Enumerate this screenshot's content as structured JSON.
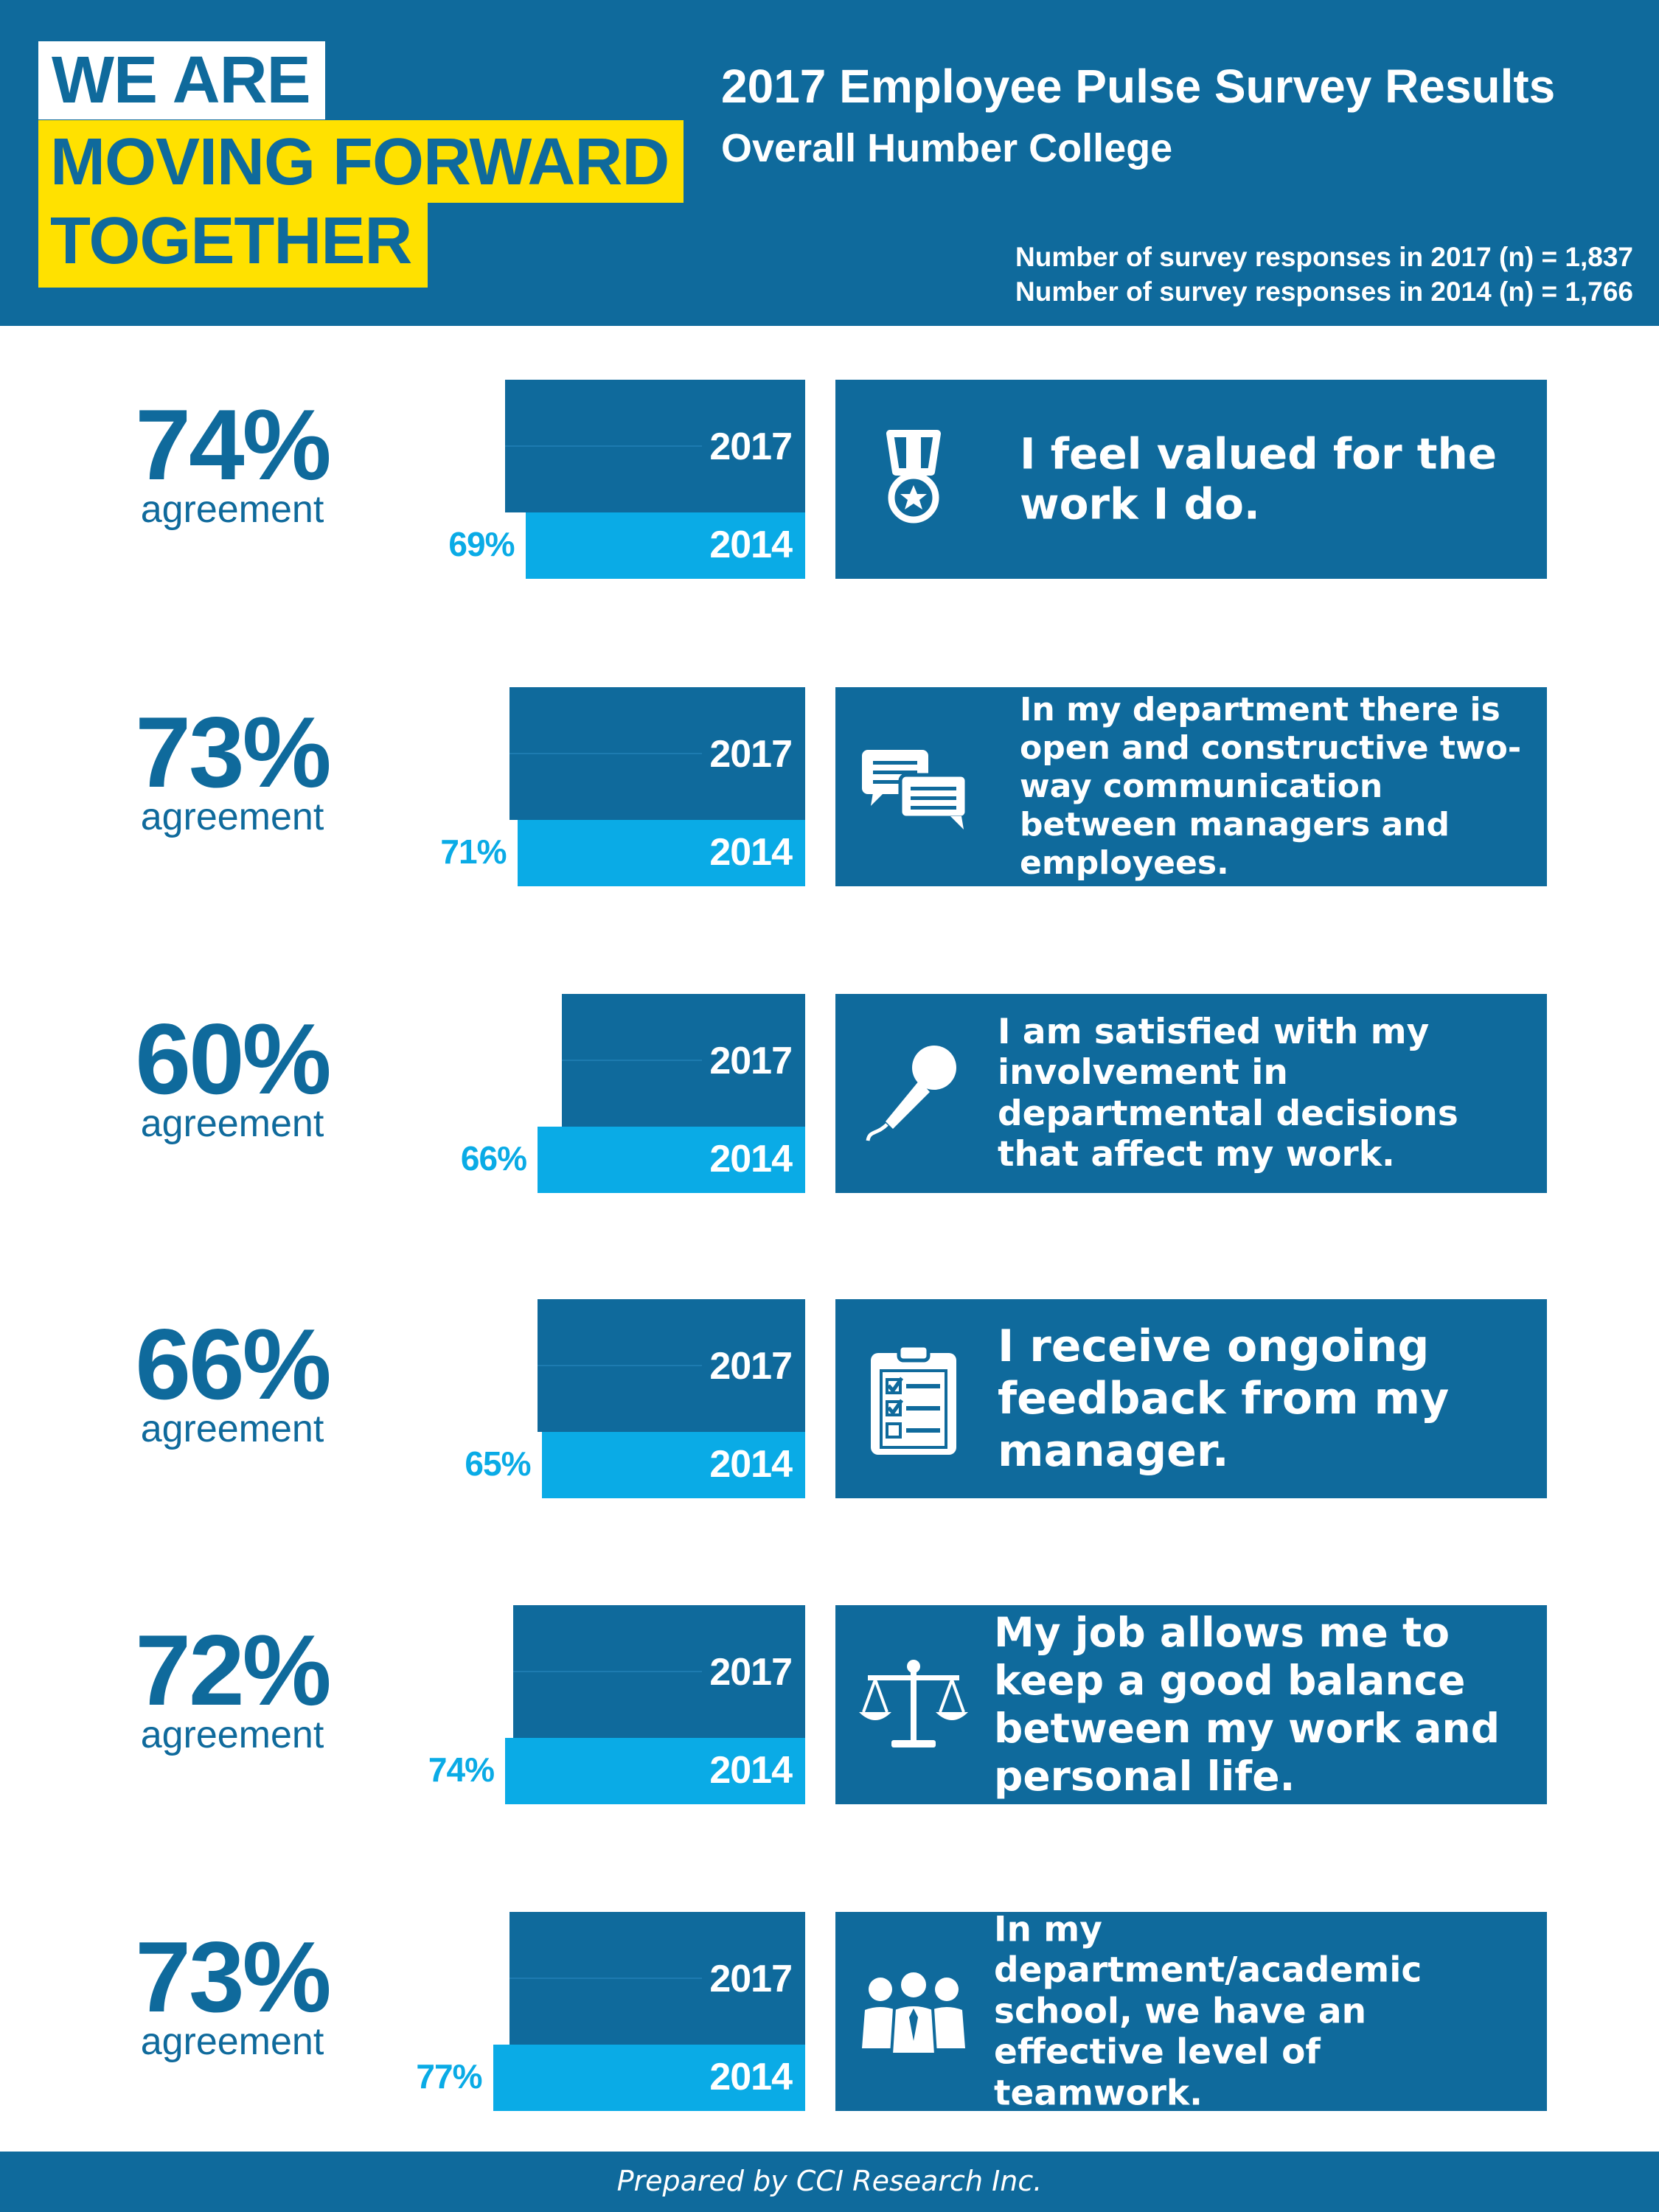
{
  "header": {
    "logo_line1": "WE ARE",
    "logo_line2": "MOVING FORWARD",
    "logo_line3": "TOGETHER",
    "title": "2017 Employee Pulse Survey Results",
    "subtitle": "Overall Humber College",
    "responses_2017": "Number of survey responses in 2017 (n) = 1,837",
    "responses_2014": "Number of survey responses in 2014 (n) = 1,766"
  },
  "agreement_label": "agreement",
  "year_labels": {
    "current": "2017",
    "previous": "2014"
  },
  "colors": {
    "dark_blue": "#0f6a9c",
    "light_blue": "#0aabe6",
    "yellow": "#ffe100",
    "white": "#ffffff"
  },
  "rows": [
    {
      "pct_2017": "74%",
      "pct_2014": "69%",
      "statement": "I feel valued for the work I do.",
      "icon": "medal-icon"
    },
    {
      "pct_2017": "73%",
      "pct_2014": "71%",
      "statement": "In my department there is open and constructive two-way communication between managers and employees.",
      "icon": "chat-bubbles-icon"
    },
    {
      "pct_2017": "60%",
      "pct_2014": "66%",
      "statement": "I am satisfied with my involvement in departmental decisions that affect my work.",
      "icon": "microphone-icon"
    },
    {
      "pct_2017": "66%",
      "pct_2014": "65%",
      "statement": "I receive ongoing feedback from my manager.",
      "icon": "clipboard-checklist-icon"
    },
    {
      "pct_2017": "72%",
      "pct_2014": "74%",
      "statement": "My job allows me to keep a good balance between my work and personal life.",
      "icon": "balance-scale-icon"
    },
    {
      "pct_2017": "73%",
      "pct_2014": "77%",
      "statement": "In my department/academic school, we have an effective level of teamwork.",
      "icon": "team-icon"
    }
  ],
  "chart_data": {
    "type": "bar",
    "categories": [
      "I feel valued for the work I do.",
      "In my department there is open and constructive two-way communication between managers and employees.",
      "I am satisfied with my involvement in departmental decisions that affect my work.",
      "I receive ongoing feedback from my manager.",
      "My job allows me to keep a good balance between my work and personal life.",
      "In my department/academic school, we have an effective level of teamwork."
    ],
    "series": [
      {
        "name": "2017",
        "values": [
          74,
          73,
          60,
          66,
          72,
          73
        ]
      },
      {
        "name": "2014",
        "values": [
          69,
          71,
          66,
          65,
          74,
          77
        ]
      }
    ],
    "unit": "% agreement"
  },
  "footer": "Prepared by CCI Research Inc."
}
